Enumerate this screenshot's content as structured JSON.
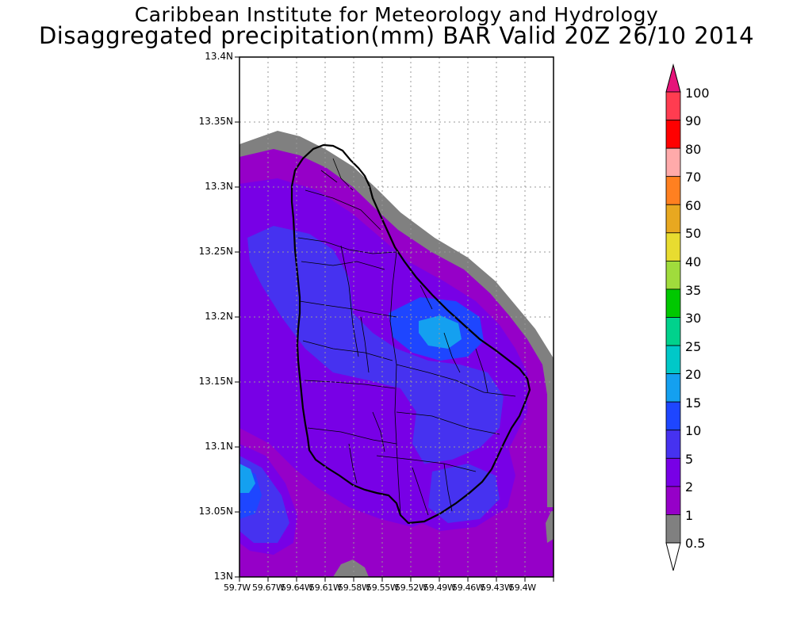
{
  "header": {
    "title_line1": "Caribbean Institute for Meteorology and Hydrology",
    "title_line2": "Disaggregated precipitation(mm) BAR Valid 20Z 26/10 2014"
  },
  "map": {
    "lat_labels": [
      "13.4N",
      "13.35N",
      "13.3N",
      "13.25N",
      "13.2N",
      "13.15N",
      "13.1N",
      "13.05N",
      "13N"
    ],
    "lon_labels": [
      "59.7W",
      "59.67W",
      "59.64W",
      "59.61W",
      "59.58W",
      "59.55W",
      "59.52W",
      "59.49W",
      "59.46W",
      "59.43W",
      "59.4W"
    ],
    "grid": "dotted"
  },
  "colorbar": {
    "labels": [
      "100",
      "90",
      "80",
      "70",
      "60",
      "50",
      "40",
      "35",
      "30",
      "25",
      "20",
      "15",
      "10",
      "5",
      "2",
      "1",
      "0.5"
    ],
    "colors": [
      "#ff3c50",
      "#ff0000",
      "#ffaaaa",
      "#ff8020",
      "#e8a820",
      "#e8dc30",
      "#a0dc3c",
      "#00c800",
      "#00d28c",
      "#00c8c8",
      "#14a0f0",
      "#1e46ff",
      "#4632f0",
      "#7800e6",
      "#9600c8",
      "#808080"
    ],
    "top_cap_color": "#e6147a",
    "bottom_cap_color": "#ffffff"
  }
}
